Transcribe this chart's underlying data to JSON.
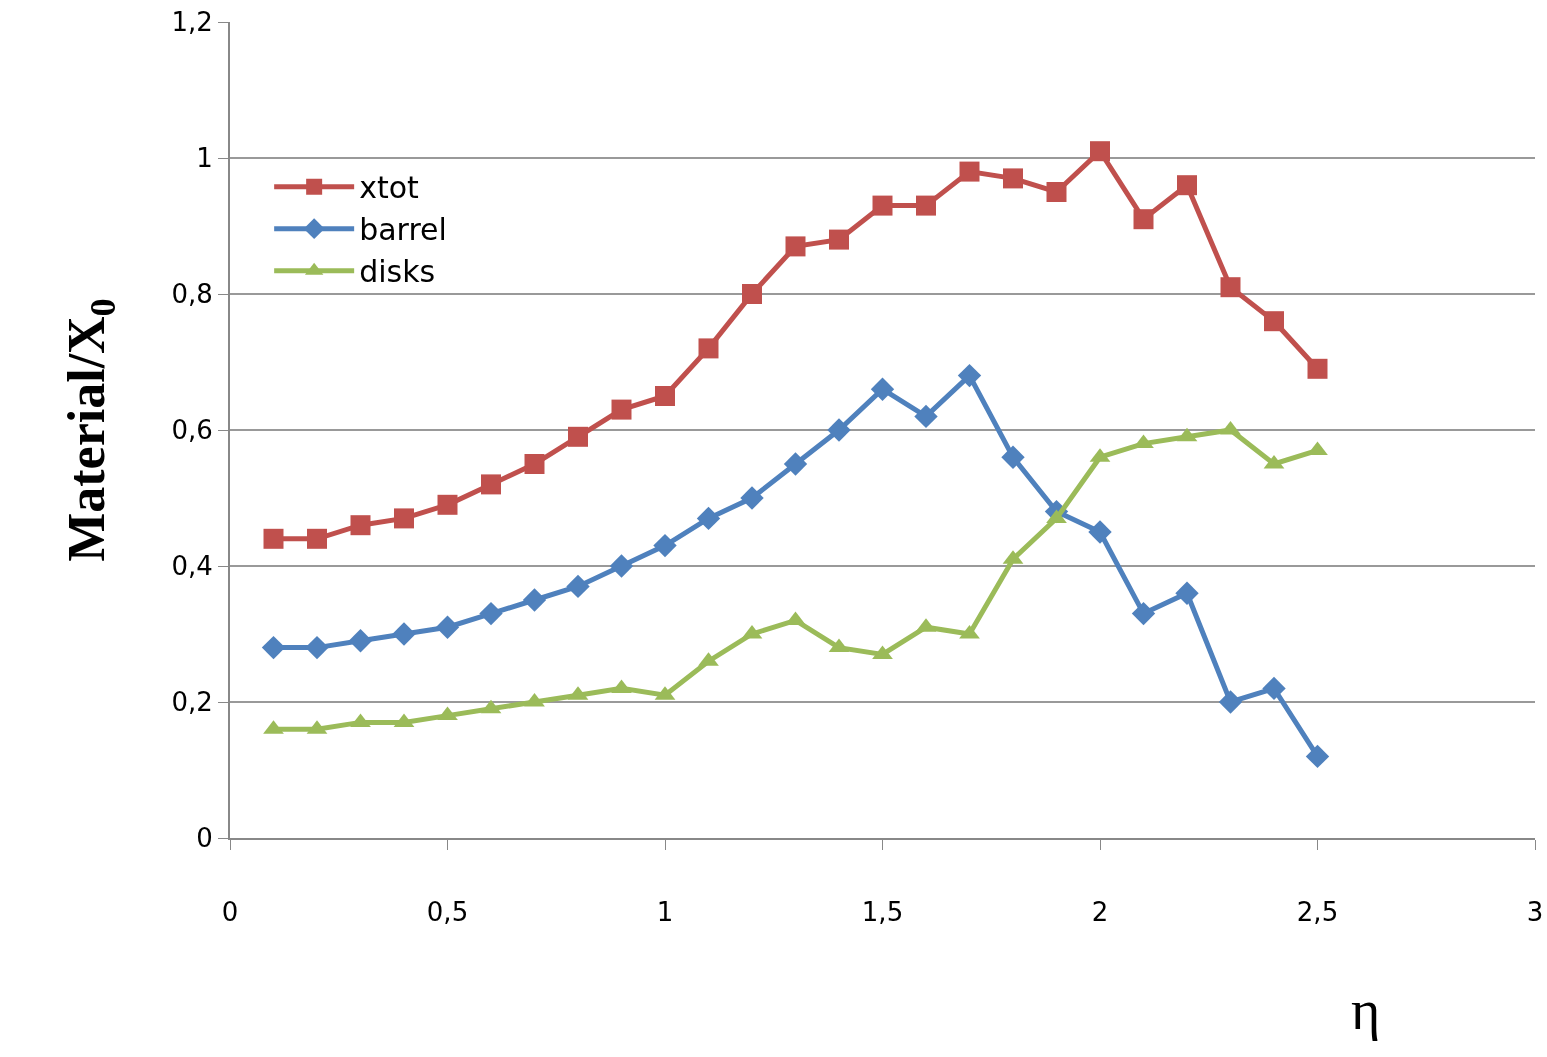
{
  "chart_data": {
    "type": "line",
    "xlabel": "η",
    "ylabel": "Material/X$_{0}$",
    "x": [
      0.1,
      0.2,
      0.3,
      0.4,
      0.5,
      0.6,
      0.7,
      0.8,
      0.9,
      1.0,
      1.1,
      1.2,
      1.3,
      1.4,
      1.5,
      1.6,
      1.7,
      1.8,
      1.9,
      2.0,
      2.1,
      2.2,
      2.3,
      2.4,
      2.5
    ],
    "series": [
      {
        "name": "xtot",
        "color": "#c0504d",
        "marker": "square",
        "values": [
          0.44,
          0.44,
          0.46,
          0.47,
          0.49,
          0.52,
          0.55,
          0.59,
          0.63,
          0.65,
          0.72,
          0.8,
          0.87,
          0.88,
          0.93,
          0.93,
          0.98,
          0.97,
          0.95,
          1.01,
          0.91,
          0.96,
          0.81,
          0.76,
          0.69
        ]
      },
      {
        "name": "barrel",
        "color": "#4f81bd",
        "marker": "diamond",
        "values": [
          0.28,
          0.28,
          0.29,
          0.3,
          0.31,
          0.33,
          0.35,
          0.37,
          0.4,
          0.43,
          0.47,
          0.5,
          0.55,
          0.6,
          0.66,
          0.62,
          0.68,
          0.56,
          0.48,
          0.45,
          0.33,
          0.36,
          0.2,
          0.22,
          0.12
        ]
      },
      {
        "name": "disks",
        "color": "#9bbb59",
        "marker": "triangle",
        "values": [
          0.16,
          0.16,
          0.17,
          0.17,
          0.18,
          0.19,
          0.2,
          0.21,
          0.22,
          0.21,
          0.26,
          0.3,
          0.32,
          0.28,
          0.27,
          0.31,
          0.3,
          0.41,
          0.47,
          0.56,
          0.58,
          0.59,
          0.6,
          0.55,
          0.57
        ]
      }
    ],
    "xlim": [
      0,
      3
    ],
    "xticks": [
      0,
      {
        "value": 0.5,
        "label": "0,5"
      },
      1,
      {
        "value": 1.5,
        "label": "1,5"
      },
      2,
      {
        "value": 2.5,
        "label": "2,5"
      },
      3
    ],
    "ylim": [
      0,
      1.2
    ],
    "yticks": [
      0,
      {
        "value": 0.2,
        "label": "0,2"
      },
      {
        "value": 0.4,
        "label": "0,4"
      },
      {
        "value": 0.6,
        "label": "0,6"
      },
      {
        "value": 0.8,
        "label": "0,8"
      },
      1,
      {
        "value": 1.2,
        "label": "1,2"
      }
    ],
    "grid": "y",
    "legend": "top left",
    "line_style": "solid"
  }
}
